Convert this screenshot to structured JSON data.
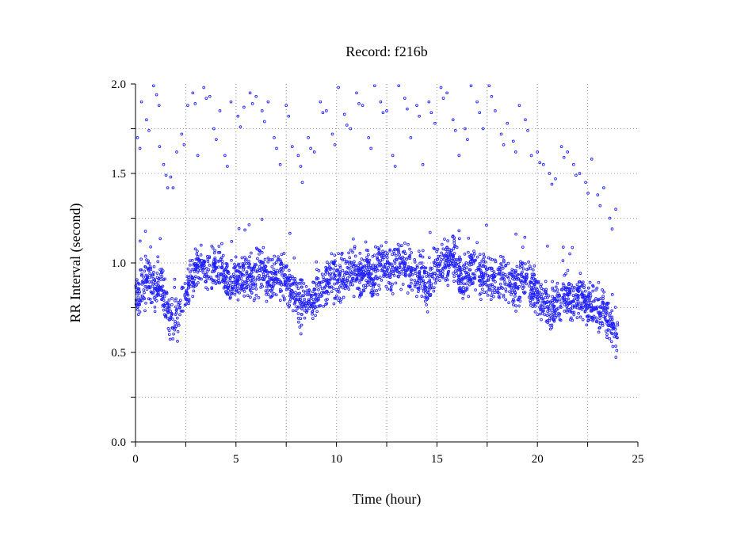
{
  "chart_data": {
    "type": "scatter",
    "title": "Record:  f216b",
    "xlabel": "Time (hour)",
    "ylabel": "RR Interval (second)",
    "xlim": [
      0,
      25
    ],
    "ylim": [
      0,
      2
    ],
    "x_ticks": [
      0,
      2.5,
      5,
      7.5,
      10,
      12.5,
      15,
      17.5,
      20,
      22.5,
      25
    ],
    "x_tick_labels": [
      {
        "value": 0,
        "label": "0"
      },
      {
        "value": 5,
        "label": "5"
      },
      {
        "value": 10,
        "label": "10"
      },
      {
        "value": 15,
        "label": "15"
      },
      {
        "value": 20,
        "label": "20"
      },
      {
        "value": 25,
        "label": "25"
      }
    ],
    "y_ticks": [
      0,
      0.25,
      0.5,
      0.75,
      1.0,
      1.25,
      1.5,
      1.75,
      2.0
    ],
    "y_tick_labels": [
      {
        "value": 0,
        "label": "0.0"
      },
      {
        "value": 0.5,
        "label": "0.5"
      },
      {
        "value": 1.0,
        "label": "1.0"
      },
      {
        "value": 1.5,
        "label": "1.5"
      },
      {
        "value": 2.0,
        "label": "2.0"
      }
    ],
    "grid": true,
    "marker": "open-circle",
    "series_color": "#2020ff",
    "series": [
      {
        "x": [
          0.0,
          0.25,
          0.5,
          0.75,
          1.0,
          1.25,
          1.5,
          1.75,
          2.0,
          2.25,
          2.5,
          2.75,
          3.0,
          3.25,
          3.5,
          3.75,
          4.0,
          4.25,
          4.5,
          4.75,
          5.0,
          5.25,
          5.5,
          5.75,
          6.0,
          6.25,
          6.5,
          6.75,
          7.0,
          7.25,
          7.5,
          7.75,
          8.0,
          8.25,
          8.5,
          8.75,
          9.0,
          9.25,
          9.5,
          9.75,
          10.0,
          10.25,
          10.5,
          10.75,
          11.0,
          11.25,
          11.5,
          11.75,
          12.0,
          12.25,
          12.5,
          12.75,
          13.0,
          13.25,
          13.5,
          13.75,
          14.0,
          14.25,
          14.5,
          14.75,
          15.0,
          15.25,
          15.5,
          15.75,
          16.0,
          16.25,
          16.5,
          16.75,
          17.0,
          17.25,
          17.5,
          17.75,
          18.0,
          18.25,
          18.5,
          18.75,
          19.0,
          19.25,
          19.5,
          19.75,
          20.0,
          20.25,
          20.5,
          20.75,
          21.0,
          21.25,
          21.5,
          21.75,
          22.0,
          22.25,
          22.5,
          22.75,
          23.0,
          23.25,
          23.5,
          23.75,
          24.0
        ],
        "y": [
          0.78,
          0.86,
          0.9,
          0.88,
          0.85,
          0.9,
          0.78,
          0.68,
          0.7,
          0.75,
          0.82,
          0.92,
          0.97,
          0.98,
          0.96,
          1.0,
          0.98,
          0.97,
          0.92,
          0.88,
          0.9,
          0.93,
          0.94,
          0.92,
          0.93,
          0.96,
          0.92,
          0.9,
          0.93,
          0.91,
          0.9,
          0.85,
          0.8,
          0.77,
          0.78,
          0.8,
          0.82,
          0.86,
          0.9,
          0.92,
          0.9,
          0.93,
          0.94,
          0.95,
          0.95,
          0.94,
          0.98,
          0.93,
          0.95,
          1.0,
          0.98,
          0.96,
          1.0,
          0.98,
          0.93,
          0.96,
          0.9,
          0.94,
          0.85,
          0.92,
          0.98,
          1.0,
          0.99,
          1.02,
          0.98,
          0.9,
          0.94,
          0.96,
          0.98,
          0.9,
          0.92,
          0.9,
          0.88,
          0.92,
          0.88,
          0.9,
          0.87,
          0.92,
          0.9,
          0.85,
          0.82,
          0.8,
          0.78,
          0.75,
          0.78,
          0.82,
          0.83,
          0.8,
          0.82,
          0.8,
          0.78,
          0.76,
          0.72,
          0.74,
          0.68,
          0.62,
          0.62
        ]
      }
    ],
    "outliers": {
      "x": [
        0.1,
        0.3,
        0.55,
        0.9,
        1.05,
        1.2,
        1.4,
        1.6,
        1.75,
        2.05,
        2.3,
        2.6,
        2.85,
        3.1,
        3.4,
        3.7,
        3.9,
        4.2,
        4.45,
        4.75,
        5.1,
        5.4,
        5.7,
        6.0,
        6.3,
        6.6,
        6.9,
        7.2,
        7.5,
        7.8,
        8.1,
        8.3,
        8.6,
        8.9,
        9.2,
        9.5,
        9.8,
        10.1,
        10.4,
        10.7,
        11.0,
        11.3,
        11.6,
        11.9,
        12.2,
        12.5,
        12.8,
        13.1,
        13.4,
        13.7,
        14.0,
        14.3,
        14.6,
        14.9,
        15.2,
        15.5,
        15.8,
        16.1,
        16.4,
        16.7,
        17.0,
        17.3,
        17.6,
        17.9,
        18.2,
        18.5,
        18.8,
        19.1,
        19.4,
        19.7,
        20.0,
        20.3,
        20.6,
        20.9,
        21.2,
        21.5,
        21.8,
        22.1,
        22.4,
        22.7,
        23.0,
        23.3,
        23.6,
        23.9
      ],
      "y": [
        1.7,
        1.9,
        1.8,
        1.99,
        1.94,
        1.65,
        1.55,
        1.42,
        1.48,
        1.62,
        1.72,
        1.88,
        1.95,
        1.6,
        1.98,
        1.93,
        1.75,
        1.85,
        1.6,
        1.9,
        1.82,
        1.87,
        1.95,
        1.93,
        1.85,
        1.9,
        1.7,
        1.55,
        1.88,
        1.65,
        1.6,
        1.45,
        1.7,
        1.62,
        1.9,
        1.85,
        1.72,
        1.98,
        1.83,
        1.75,
        1.95,
        1.88,
        1.7,
        1.99,
        1.9,
        1.85,
        1.6,
        1.99,
        1.92,
        1.7,
        1.88,
        1.55,
        1.9,
        1.78,
        1.98,
        1.95,
        1.8,
        1.6,
        1.75,
        1.99,
        1.9,
        1.75,
        1.99,
        1.85,
        1.72,
        1.78,
        1.68,
        1.88,
        1.8,
        1.6,
        1.62,
        1.55,
        1.5,
        1.47,
        1.65,
        1.62,
        1.55,
        1.5,
        1.45,
        1.58,
        1.38,
        1.42,
        1.25,
        1.3
      ]
    }
  }
}
